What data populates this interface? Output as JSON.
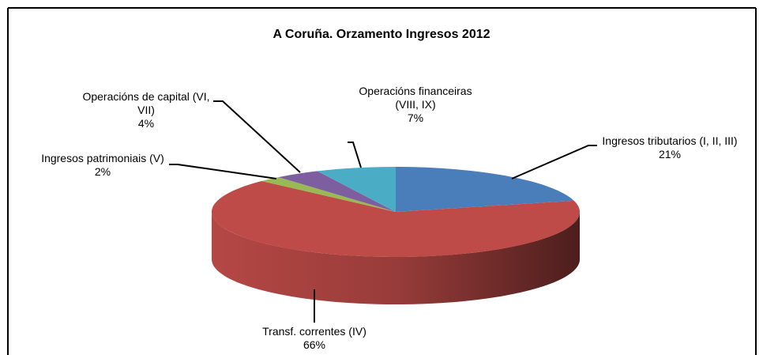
{
  "chart_data": {
    "type": "pie3d",
    "title": "A Coruña. Orzamento Ingresos 2012",
    "categories": [
      "Ingresos tributarios (I, II, III)",
      "Transf. correntes (IV)",
      "Ingresos patrimoniais (V)",
      "Operacións de capital (VI, VII)",
      "Operacións financeiras (VIII, IX)"
    ],
    "values": [
      21,
      66,
      2,
      4,
      7
    ],
    "value_labels": [
      "21%",
      "66%",
      "2%",
      "4%",
      "7%"
    ],
    "colors": [
      "#4a7ebb",
      "#be4b48",
      "#98b954",
      "#7d5fa0",
      "#4bacc6"
    ]
  }
}
